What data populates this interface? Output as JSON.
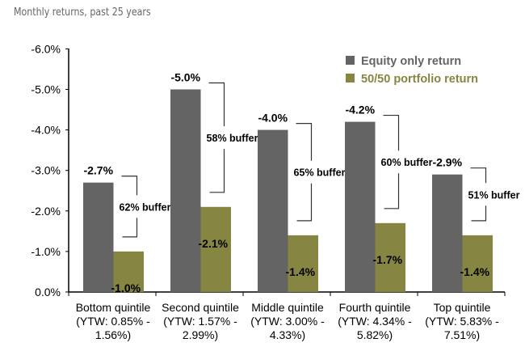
{
  "subtitle": "Monthly returns, past 25 years",
  "chart_data": {
    "type": "bar",
    "categories": [
      [
        "Bottom quintile",
        "(YTW: 0.85% -",
        "1.56%)"
      ],
      [
        "Second quintile",
        "(YTW: 1.57% -",
        "2.99%)"
      ],
      [
        "Middle quintile",
        "(YTW: 3.00% -",
        "4.33%)"
      ],
      [
        "Fourth quintile",
        "(YTW: 4.34% -",
        "5.82%)"
      ],
      [
        "Top quintile",
        "(YTW: 5.83% -",
        "7.51%)"
      ]
    ],
    "series": [
      {
        "name": "Equity only return",
        "values": [
          -2.7,
          -5.0,
          -4.0,
          -4.2,
          -2.9
        ],
        "labels": [
          "-2.7%",
          "-5.0%",
          "-4.0%",
          "-4.2%",
          "-2.9%"
        ],
        "color": "#646464"
      },
      {
        "name": "50/50 portfolio return",
        "values": [
          -1.0,
          -2.1,
          -1.4,
          -1.7,
          -1.4
        ],
        "labels": [
          "-1.0%",
          "-2.1%",
          "-1.4%",
          "-1.7%",
          "-1.4%"
        ],
        "color": "#868642"
      }
    ],
    "annotations": [
      "62% buffer",
      "58% buffer",
      "65% buffer",
      "60% buffer",
      "51% buffer"
    ],
    "yticks": [
      "0.0%",
      "-1.0%",
      "-2.0%",
      "-3.0%",
      "-4.0%",
      "-5.0%",
      "-6.0%"
    ],
    "ylim": [
      0,
      -6
    ],
    "y_inverted": true,
    "legend": "top-right",
    "grid": false
  }
}
